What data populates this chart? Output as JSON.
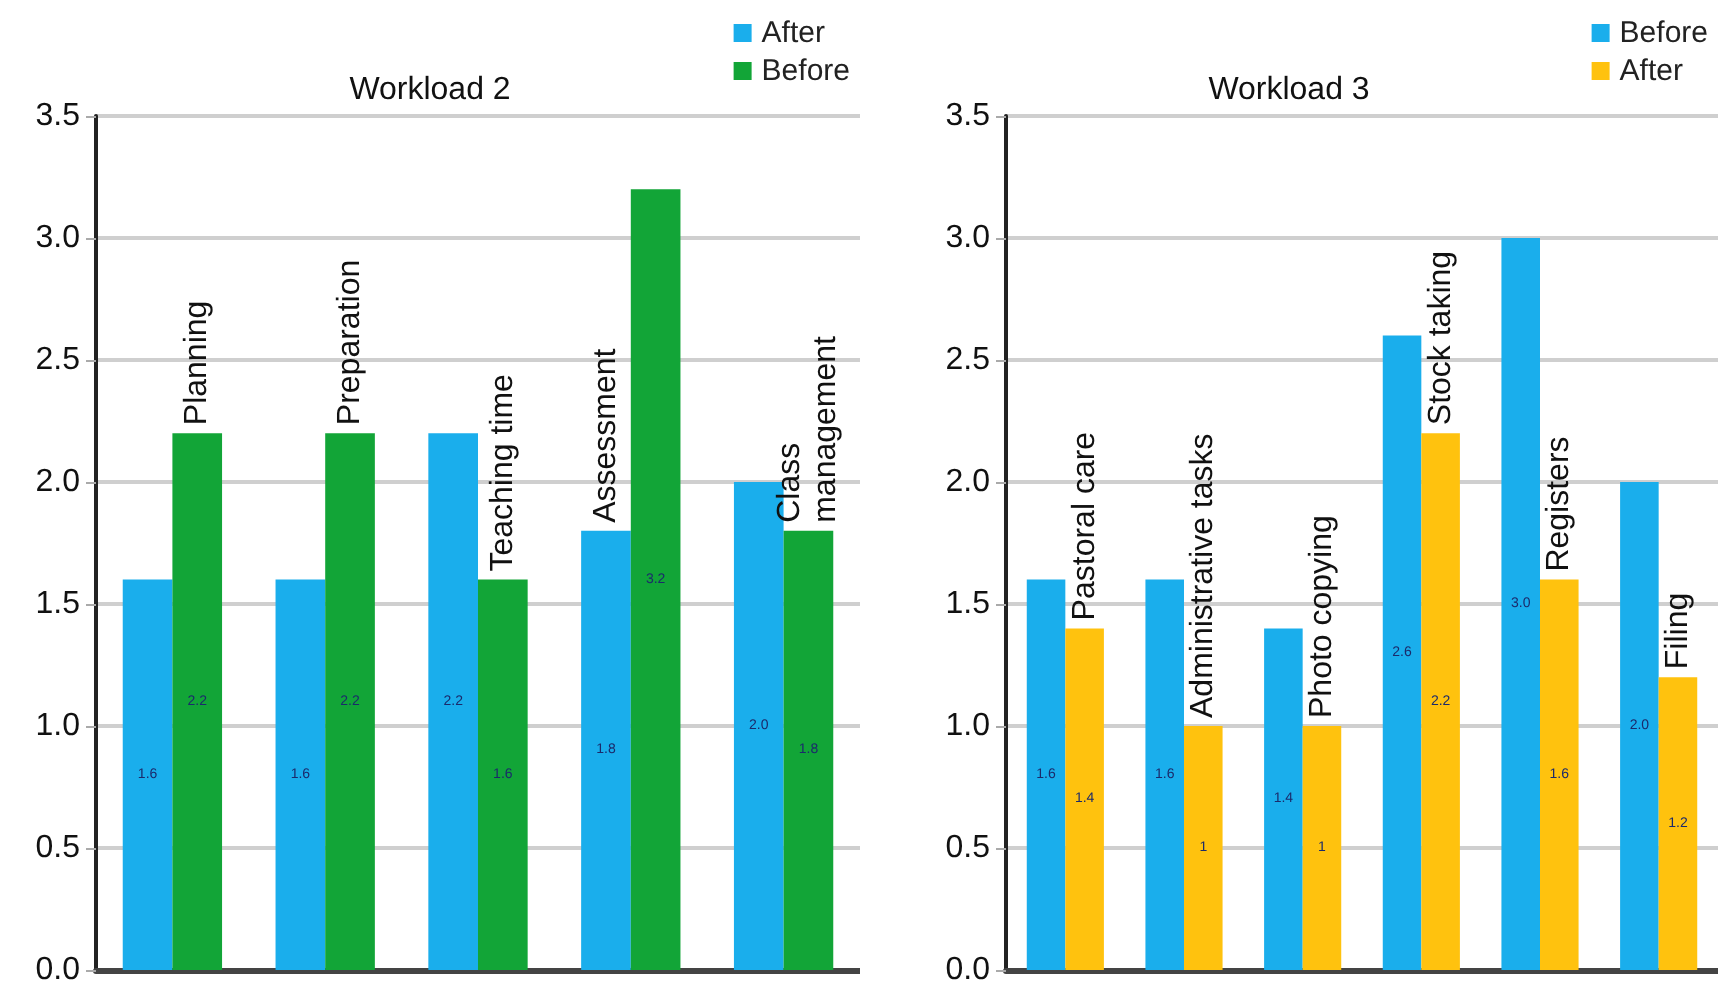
{
  "chart_data": [
    {
      "type": "bar",
      "title": "Workload 2",
      "categories": [
        "Planning",
        "Preparation",
        "Teaching time",
        "Assessment",
        "Class\nmanagement"
      ],
      "series": [
        {
          "name": "After",
          "color": "#1aaeec",
          "values": [
            1.6,
            1.6,
            2.2,
            1.8,
            2.0
          ],
          "value_labels": [
            "1.6",
            "1.6",
            "2.2",
            "1.8",
            "2.0"
          ]
        },
        {
          "name": "Before",
          "color": "#12a537",
          "values": [
            2.2,
            2.2,
            1.6,
            3.2,
            1.8
          ],
          "value_labels": [
            "2.2",
            "2.2",
            "1.6",
            "3.2",
            "1.8"
          ]
        }
      ],
      "ylim": [
        0,
        3.5
      ],
      "yticks": [
        "0.0",
        "0.5",
        "1.0",
        "1.5",
        "2.0",
        "2.5",
        "3.0",
        "3.5"
      ],
      "grid": "y",
      "legend": "top right",
      "tick_labels": "y"
    },
    {
      "type": "bar",
      "title": "Workload 3",
      "categories": [
        "Pastoral care",
        "Administrative tasks",
        "Photo copying",
        "Stock taking",
        "Registers",
        "Filing"
      ],
      "series": [
        {
          "name": "Before",
          "color": "#1aaeec",
          "values": [
            1.6,
            1.6,
            1.4,
            2.6,
            3.0,
            2.0
          ],
          "value_labels": [
            "1.6",
            "1.6",
            "1.4",
            "2.6",
            "3.0",
            "2.0"
          ]
        },
        {
          "name": "After",
          "color": "#ffc20e",
          "values": [
            1.4,
            1,
            1,
            2.2,
            1.6,
            1.2
          ],
          "value_labels": [
            "1.4",
            "1",
            "1",
            "2.2",
            "1.6",
            "1.2"
          ]
        }
      ],
      "ylim": [
        0,
        3.5
      ],
      "yticks": [
        "0.0",
        "0.5",
        "1.0",
        "1.5",
        "2.0",
        "2.5",
        "3.0",
        "3.5"
      ],
      "grid": "y",
      "legend": "top right",
      "tick_labels": "y"
    }
  ]
}
